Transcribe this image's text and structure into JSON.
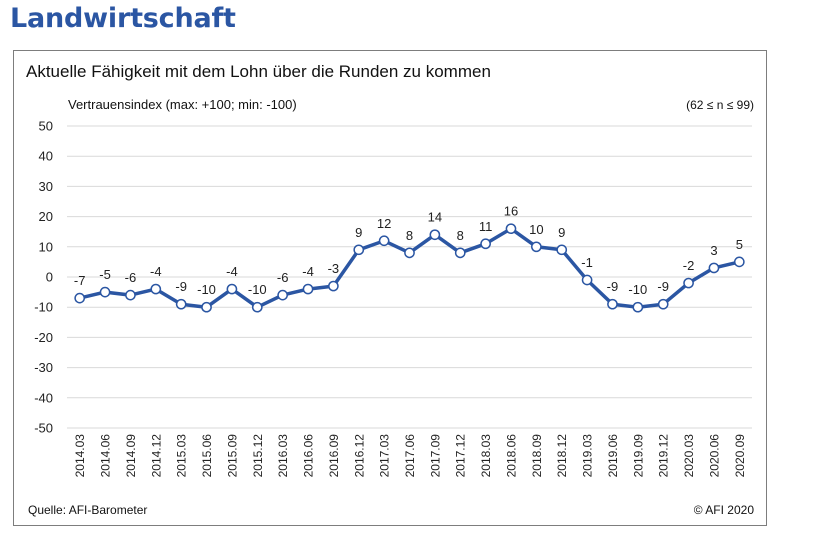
{
  "page": {
    "heading": "Landwirtschaft"
  },
  "chart_data": {
    "type": "line",
    "title": "Aktuelle Fähigkeit mit dem Lohn über die Runden zu kommen",
    "ylabel": "Vertrauensindex (max: +100; min: -100)",
    "note": "(62 ≤ n ≤ 99)",
    "source": "Quelle: AFI-Barometer",
    "copyright": "© AFI 2020",
    "ylim": [
      -50,
      50
    ],
    "yticks": [
      "50",
      "40",
      "30",
      "20",
      "10",
      "0",
      "-10",
      "-20",
      "-30",
      "-40",
      "-50"
    ],
    "ytick_values": [
      50,
      40,
      30,
      20,
      10,
      0,
      -10,
      -20,
      -30,
      -40,
      -50
    ],
    "grid": true,
    "line_color": "#2b56a3",
    "categories": [
      "2014.03",
      "2014.06",
      "2014.09",
      "2014.12",
      "2015.03",
      "2015.06",
      "2015.09",
      "2015.12",
      "2016.03",
      "2016.06",
      "2016.09",
      "2016.12",
      "2017.03",
      "2017.06",
      "2017.09",
      "2017.12",
      "2018.03",
      "2018.06",
      "2018.09",
      "2018.12",
      "2019.03",
      "2019.06",
      "2019.09",
      "2019.12",
      "2020.03",
      "2020.06",
      "2020.09"
    ],
    "series": [
      {
        "values": [
          -7,
          -5,
          -6,
          -4,
          -9,
          -10,
          -4,
          -10,
          -6,
          -4,
          -3,
          9,
          12,
          8,
          14,
          8,
          11,
          16,
          10,
          9,
          -1,
          -9,
          -10,
          -9,
          -2,
          3,
          5
        ],
        "labels": [
          "-7",
          "-5",
          "-6",
          "-4",
          "-9",
          "-10",
          "-4",
          "-10",
          "-6",
          "-4",
          "-3",
          "9",
          "12",
          "8",
          "14",
          "8",
          "11",
          "16",
          "10",
          "9",
          "-1",
          "-9",
          "-10",
          "-9",
          "-2",
          "3",
          "5"
        ]
      }
    ]
  }
}
